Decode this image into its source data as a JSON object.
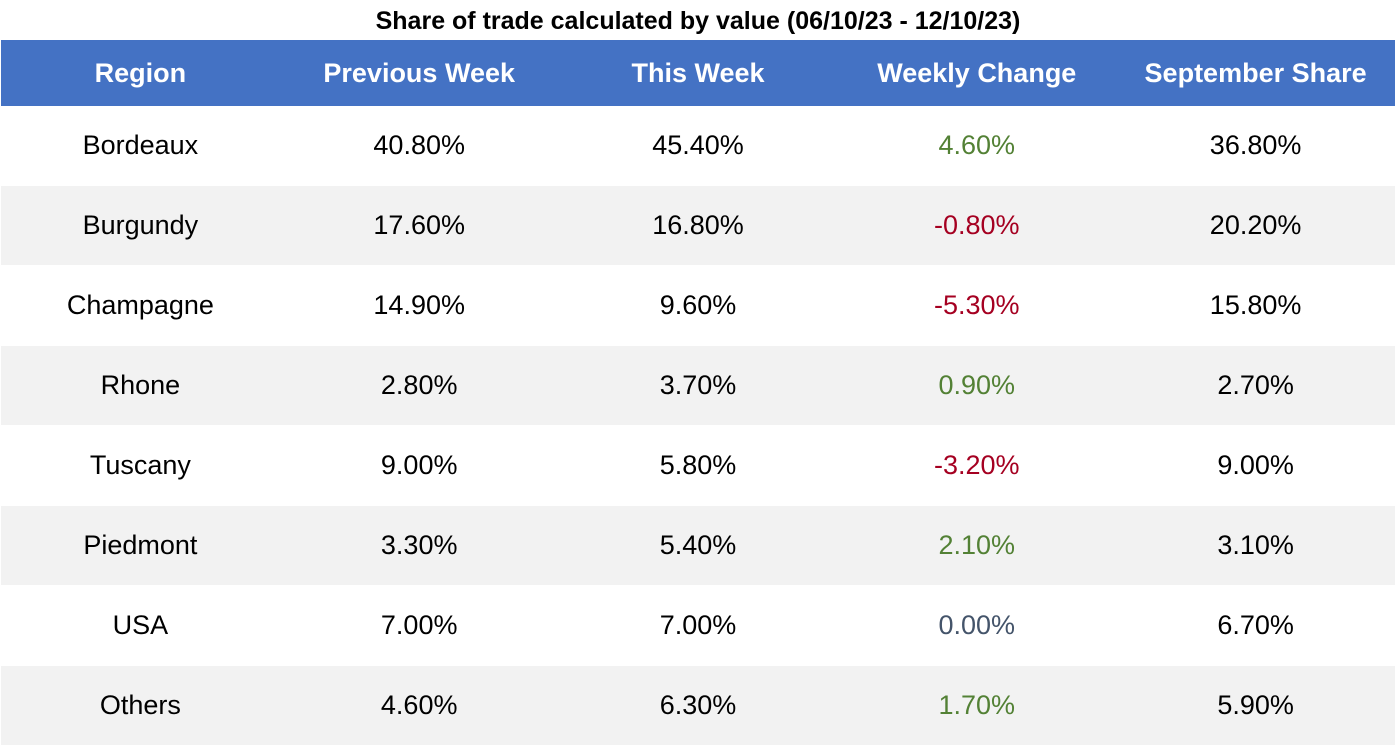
{
  "chart_data": {
    "type": "table",
    "title": "Share of trade calculated by value (06/10/23 - 12/10/23)",
    "columns": [
      "Region",
      "Previous Week",
      "This Week",
      "Weekly Change",
      "September Share"
    ],
    "rows": [
      {
        "region": "Bordeaux",
        "previous_week": "40.80%",
        "this_week": "45.40%",
        "weekly_change": "4.60%",
        "september_share": "36.80%",
        "change_sign": "pos"
      },
      {
        "region": "Burgundy",
        "previous_week": "17.60%",
        "this_week": "16.80%",
        "weekly_change": "-0.80%",
        "september_share": "20.20%",
        "change_sign": "neg"
      },
      {
        "region": "Champagne",
        "previous_week": "14.90%",
        "this_week": "9.60%",
        "weekly_change": "-5.30%",
        "september_share": "15.80%",
        "change_sign": "neg"
      },
      {
        "region": "Rhone",
        "previous_week": "2.80%",
        "this_week": "3.70%",
        "weekly_change": "0.90%",
        "september_share": "2.70%",
        "change_sign": "pos"
      },
      {
        "region": "Tuscany",
        "previous_week": "9.00%",
        "this_week": "5.80%",
        "weekly_change": "-3.20%",
        "september_share": "9.00%",
        "change_sign": "neg"
      },
      {
        "region": "Piedmont",
        "previous_week": "3.30%",
        "this_week": "5.40%",
        "weekly_change": "2.10%",
        "september_share": "3.10%",
        "change_sign": "pos"
      },
      {
        "region": "USA",
        "previous_week": "7.00%",
        "this_week": "7.00%",
        "weekly_change": "0.00%",
        "september_share": "6.70%",
        "change_sign": "zero"
      },
      {
        "region": "Others",
        "previous_week": "4.60%",
        "this_week": "6.30%",
        "weekly_change": "1.70%",
        "september_share": "5.90%",
        "change_sign": "pos"
      }
    ]
  },
  "colors": {
    "header_bg": "#4472c4",
    "header_text": "#ffffff",
    "row_alt_bg": "#f2f2f2",
    "positive": "#538135",
    "negative": "#a50021",
    "neutral": "#44546a"
  }
}
